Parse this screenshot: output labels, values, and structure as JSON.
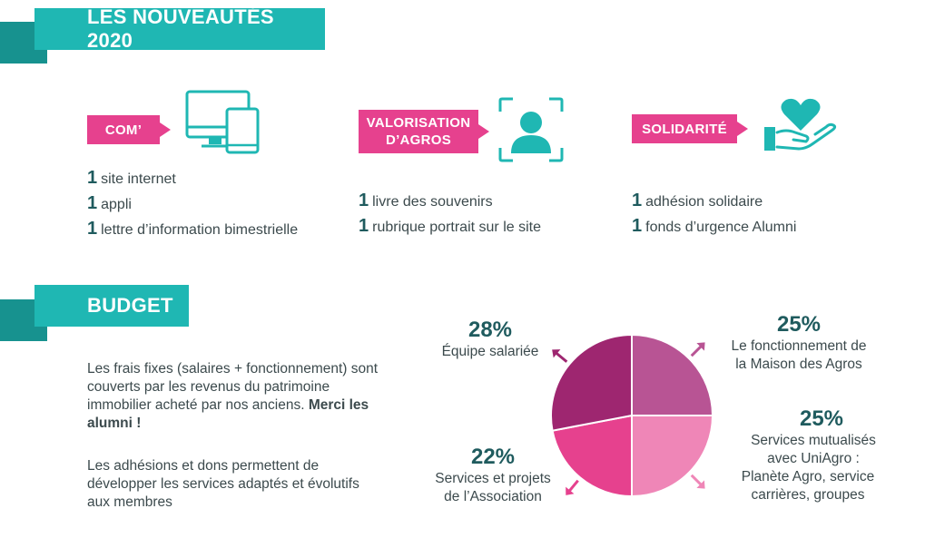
{
  "colors": {
    "teal": "#1fb7b3",
    "teal_dark": "#1a8a87",
    "pink": "#e6418e",
    "dark_teal_text": "#1f5b5e"
  },
  "header": {
    "title": "LES NOUVEAUTÉS 2020"
  },
  "sections": {
    "com": {
      "tag": "COM’",
      "icon": "devices-icon",
      "items": [
        {
          "num": "1",
          "text": "site internet"
        },
        {
          "num": "1",
          "text": "appli"
        },
        {
          "num": "1",
          "text": "lettre d’information bimestrielle"
        }
      ]
    },
    "valorisation": {
      "tag_line1": "VALORISATION",
      "tag_line2": "D’AGROS",
      "icon": "user-portrait-icon",
      "items": [
        {
          "num": "1",
          "text": "livre des souvenirs"
        },
        {
          "num": "1",
          "text": "rubrique portrait sur le site"
        }
      ]
    },
    "solidarite": {
      "tag": "SOLIDARITÉ",
      "icon": "heart-hand-icon",
      "items": [
        {
          "num": "1",
          "text": "adhésion solidaire"
        },
        {
          "num": "1",
          "text": "fonds d’urgence Alumni"
        }
      ]
    }
  },
  "budget": {
    "title": "BUDGET",
    "para1_part1": "Les frais fixes (salaires + fonctionnement) sont couverts par les revenus du patrimoine immobilier acheté par nos anciens. ",
    "para1_bold": "Merci les alumni !",
    "para2": "Les adhésions et dons permettent de développer les services adaptés et évolutifs aux membres"
  },
  "chart_data": {
    "type": "pie",
    "slices": [
      {
        "label": "Le fonctionnement de la Maison des Agros",
        "label_line1": "Le fonctionnement de",
        "label_line2": "la Maison des Agros",
        "value": 25,
        "value_label": "25%",
        "color": "#b85494"
      },
      {
        "label": "Services mutualisés avec UniAgro : Planète Agro, service carrières, groupes",
        "label_line1": "Services mutualisés",
        "label_line2": "avec UniAgro :",
        "label_line3": "Planète Agro, service",
        "label_line4": "carrières, groupes",
        "value": 25,
        "value_label": "25%",
        "color": "#ef86b7"
      },
      {
        "label": "Services et projets de l’Association",
        "label_line1": "Services et projets",
        "label_line2": "de l’Association",
        "value": 22,
        "value_label": "22%",
        "color": "#e6418e"
      },
      {
        "label": "Équipe salariée",
        "label_line1": "Équipe salariée",
        "value": 28,
        "value_label": "28%",
        "color": "#9e2670"
      }
    ]
  }
}
